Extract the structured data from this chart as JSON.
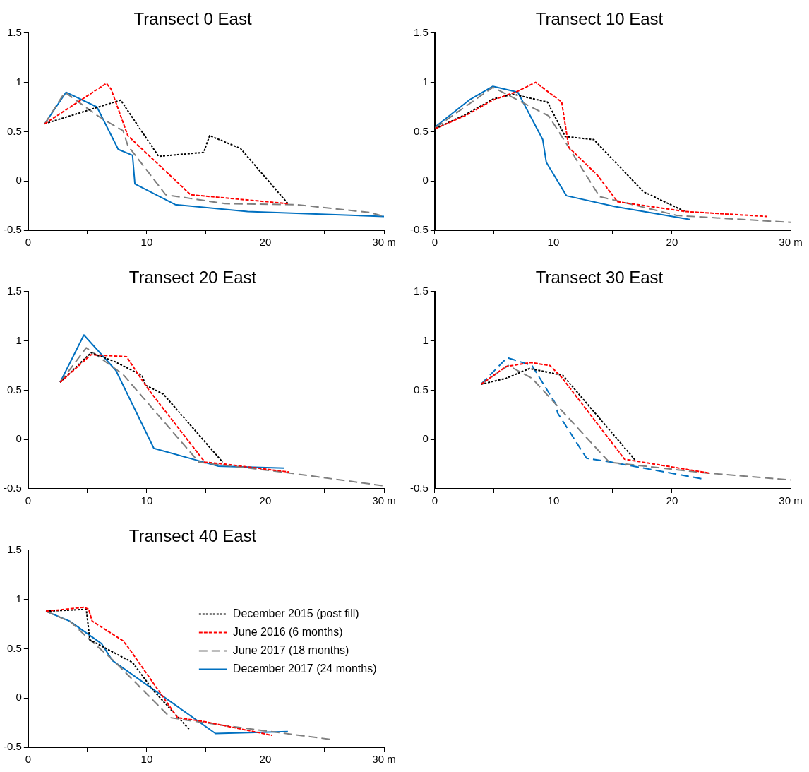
{
  "chart_data": [
    {
      "type": "line",
      "title": "Transect 0 East",
      "xlim": [
        0,
        30
      ],
      "xticks": [
        0,
        {
          "value": 5,
          "label": null
        },
        10,
        {
          "value": 15,
          "label": null
        },
        20,
        {
          "value": 25,
          "label": null
        },
        {
          "value": 30,
          "label": "30 m"
        }
      ],
      "ylim": [
        -0.5,
        1.5
      ],
      "yticks": [
        -0.5,
        0,
        0.5,
        1,
        1.5
      ],
      "grid": false,
      "legend": false,
      "marker": "none",
      "series": [
        {
          "color": "#000000",
          "line_style": "dotted",
          "x": [
            1.4,
            7.8,
            11.0,
            14.8,
            15.3,
            17.9,
            21.9
          ],
          "values": [
            0.58,
            0.82,
            0.25,
            0.29,
            0.46,
            0.33,
            -0.23
          ]
        },
        {
          "color": "#ff0000",
          "line_style": "dashed",
          "x": [
            1.4,
            6.6,
            7.0,
            8.4,
            13.7,
            21.9
          ],
          "values": [
            0.58,
            0.99,
            0.93,
            0.46,
            -0.14,
            -0.23
          ]
        },
        {
          "color": "#7f7f7f",
          "line_style": "long-dashed",
          "x": [
            1.4,
            3.1,
            6.0,
            8.0,
            8.4,
            11.6,
            16.6,
            22.6,
            28.8,
            30
          ],
          "values": [
            0.58,
            0.9,
            0.65,
            0.51,
            0.36,
            -0.14,
            -0.23,
            -0.24,
            -0.32,
            -0.36
          ]
        },
        {
          "color": "#0070c0",
          "line_style": "solid",
          "x": [
            1.4,
            3.2,
            5.8,
            7.6,
            8.8,
            9.0,
            12.4,
            18.5,
            30
          ],
          "values": [
            0.58,
            0.9,
            0.75,
            0.32,
            0.26,
            -0.03,
            -0.24,
            -0.31,
            -0.36
          ]
        }
      ]
    },
    {
      "type": "line",
      "title": "Transect 10 East",
      "xlim": [
        0,
        30
      ],
      "xticks": [
        0,
        {
          "value": 5,
          "label": null
        },
        10,
        {
          "value": 15,
          "label": null
        },
        20,
        {
          "value": 25,
          "label": null
        },
        {
          "value": 30,
          "label": "30 m"
        }
      ],
      "ylim": [
        -0.5,
        1.5
      ],
      "yticks": [
        -0.5,
        0,
        0.5,
        1,
        1.5
      ],
      "grid": false,
      "legend": false,
      "marker": "none",
      "series": [
        {
          "color": "#000000",
          "line_style": "dotted",
          "x": [
            0.05,
            2.7,
            4.9,
            6.6,
            9.5,
            11.0,
            13.4,
            17.6,
            21.1
          ],
          "values": [
            0.53,
            0.68,
            0.83,
            0.88,
            0.8,
            0.45,
            0.42,
            -0.11,
            -0.31
          ]
        },
        {
          "color": "#ff0000",
          "line_style": "dashed",
          "x": [
            0.05,
            2.7,
            4.9,
            7.0,
            8.5,
            10.7,
            11.3,
            13.7,
            15.4,
            21.1,
            28.0
          ],
          "values": [
            0.53,
            0.67,
            0.82,
            0.91,
            1.0,
            0.8,
            0.34,
            0.06,
            -0.21,
            -0.31,
            -0.36
          ]
        },
        {
          "color": "#7f7f7f",
          "line_style": "long-dashed",
          "x": [
            0.05,
            4.9,
            9.6,
            11.3,
            13.9,
            15.7,
            20.4,
            30
          ],
          "values": [
            0.54,
            0.95,
            0.66,
            0.34,
            -0.16,
            -0.21,
            -0.35,
            -0.42
          ]
        },
        {
          "color": "#0070c0",
          "line_style": "solid",
          "x": [
            0.05,
            2.9,
            4.9,
            7.0,
            9.1,
            9.4,
            11.1,
            15.2,
            21.5
          ],
          "values": [
            0.55,
            0.82,
            0.96,
            0.9,
            0.42,
            0.19,
            -0.15,
            -0.26,
            -0.39
          ]
        }
      ]
    },
    {
      "type": "line",
      "title": "Transect 20 East",
      "xlim": [
        0,
        30
      ],
      "xticks": [
        0,
        {
          "value": 5,
          "label": null
        },
        10,
        {
          "value": 15,
          "label": null
        },
        20,
        {
          "value": 25,
          "label": null
        },
        {
          "value": 30,
          "label": "30 m"
        }
      ],
      "ylim": [
        -0.5,
        1.5
      ],
      "yticks": [
        -0.5,
        0,
        0.5,
        1,
        1.5
      ],
      "grid": false,
      "legend": false,
      "marker": "none",
      "series": [
        {
          "color": "#000000",
          "line_style": "dotted",
          "x": [
            2.7,
            5.3,
            7.3,
            9.6,
            9.9,
            11.4,
            16.4
          ],
          "values": [
            0.58,
            0.88,
            0.79,
            0.65,
            0.55,
            0.46,
            -0.23
          ]
        },
        {
          "color": "#ff0000",
          "line_style": "dashed",
          "x": [
            2.7,
            5.3,
            8.3,
            10.0,
            14.9,
            16.6,
            22.0
          ],
          "values": [
            0.58,
            0.86,
            0.84,
            0.53,
            -0.23,
            -0.25,
            -0.33
          ]
        },
        {
          "color": "#7f7f7f",
          "line_style": "long-dashed",
          "x": [
            2.7,
            4.9,
            8.0,
            14.4,
            21.4,
            30
          ],
          "values": [
            0.58,
            0.93,
            0.66,
            -0.23,
            -0.33,
            -0.47
          ]
        },
        {
          "color": "#0070c0",
          "line_style": "solid",
          "x": [
            2.7,
            4.7,
            7.4,
            10.6,
            16.0,
            21.6
          ],
          "values": [
            0.58,
            1.06,
            0.7,
            -0.09,
            -0.27,
            -0.29
          ]
        }
      ]
    },
    {
      "type": "line",
      "title": "Transect 30 East",
      "xlim": [
        0,
        30
      ],
      "xticks": [
        0,
        {
          "value": 5,
          "label": null
        },
        10,
        {
          "value": 15,
          "label": null
        },
        20,
        {
          "value": 25,
          "label": null
        },
        {
          "value": 30,
          "label": "30 m"
        }
      ],
      "ylim": [
        -0.5,
        1.5
      ],
      "yticks": [
        -0.5,
        0,
        0.5,
        1,
        1.5
      ],
      "grid": false,
      "legend": false,
      "marker": "none",
      "series": [
        {
          "color": "#000000",
          "line_style": "dotted",
          "x": [
            3.9,
            6.0,
            8.0,
            10.8,
            16.9
          ],
          "values": [
            0.56,
            0.62,
            0.72,
            0.65,
            -0.21
          ]
        },
        {
          "color": "#ff0000",
          "line_style": "dashed",
          "x": [
            3.9,
            6.0,
            8.1,
            9.7,
            10.7,
            16.0,
            23.1
          ],
          "values": [
            0.56,
            0.74,
            0.78,
            0.75,
            0.63,
            -0.2,
            -0.34
          ]
        },
        {
          "color": "#7f7f7f",
          "line_style": "long-dashed",
          "x": [
            3.9,
            6.2,
            8.2,
            14.7,
            22.9,
            30
          ],
          "values": [
            0.56,
            0.75,
            0.62,
            -0.23,
            -0.34,
            -0.41
          ]
        },
        {
          "color": "#0070c0",
          "line_style": "long-dashed",
          "x": [
            3.9,
            6.1,
            8.2,
            10.2,
            10.35,
            12.8,
            14.9,
            22.6
          ],
          "values": [
            0.56,
            0.83,
            0.75,
            0.36,
            0.27,
            -0.19,
            -0.23,
            -0.4
          ]
        }
      ]
    },
    {
      "type": "line",
      "title": "Transect 40 East",
      "xlim": [
        0,
        30
      ],
      "xticks": [
        0,
        {
          "value": 5,
          "label": null
        },
        10,
        {
          "value": 15,
          "label": null
        },
        20,
        {
          "value": 25,
          "label": null
        },
        {
          "value": 30,
          "label": "30 m"
        }
      ],
      "ylim": [
        -0.5,
        1.5
      ],
      "yticks": [
        -0.5,
        0,
        0.5,
        1,
        1.5
      ],
      "grid": false,
      "legend": "right",
      "marker": "none",
      "series": [
        {
          "name": "December 2015 (post fill)",
          "color": "#000000",
          "line_style": "dotted",
          "x": [
            1.5,
            4.9,
            5.2,
            8.8,
            10.6,
            13.6
          ],
          "values": [
            0.88,
            0.9,
            0.59,
            0.36,
            0.07,
            -0.32
          ]
        },
        {
          "name": "June 2016 (6 months)",
          "color": "#ff0000",
          "line_style": "dashed",
          "x": [
            1.5,
            4.7,
            5.1,
            5.4,
            8.0,
            8.4,
            12.6,
            14.9,
            20.6
          ],
          "values": [
            0.88,
            0.92,
            0.9,
            0.78,
            0.58,
            0.52,
            -0.2,
            -0.24,
            -0.38
          ]
        },
        {
          "name": "June 2017 (18 months)",
          "color": "#7f7f7f",
          "line_style": "long-dashed",
          "x": [
            1.5,
            3.6,
            5.2,
            7.2,
            12.0,
            16.0,
            25.5
          ],
          "values": [
            0.88,
            0.77,
            0.59,
            0.38,
            -0.2,
            -0.27,
            -0.42
          ]
        },
        {
          "name": "December 2017 (24 months)",
          "color": "#0070c0",
          "line_style": "solid",
          "x": [
            1.5,
            3.5,
            6.2,
            7.1,
            15.8,
            21.9
          ],
          "values": [
            0.88,
            0.78,
            0.55,
            0.38,
            -0.36,
            -0.34
          ]
        }
      ]
    }
  ]
}
